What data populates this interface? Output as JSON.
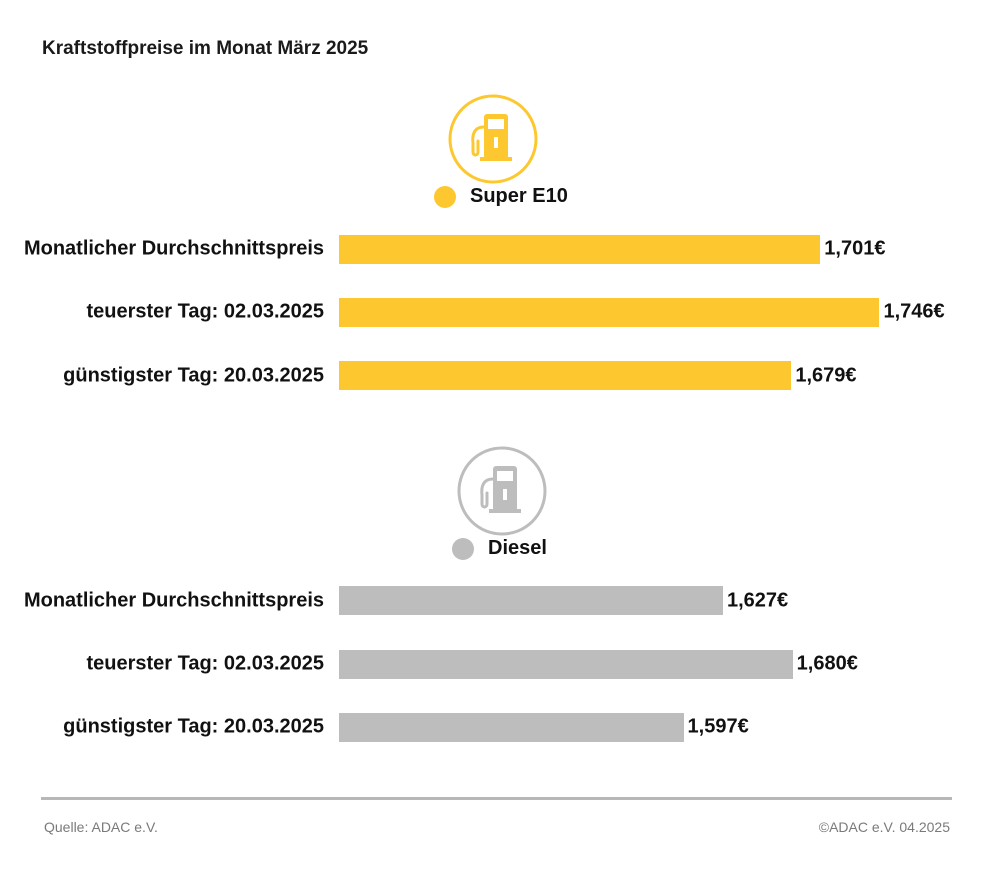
{
  "title": "Kraftstoffpreise im Monat März 2025",
  "chart_data": [
    {
      "type": "bar",
      "orientation": "horizontal",
      "series_name": "Super E10",
      "color": "#fdc82f",
      "icon": "fuel-pump-icon",
      "categories": [
        "Monatlicher Durchschnittspreis",
        "teuerster Tag: 02.03.2025",
        "günstigster Tag: 20.03.2025"
      ],
      "values": [
        1.701,
        1.746,
        1.679
      ],
      "value_labels": [
        "1,701€",
        "1,746€",
        "1,679€"
      ]
    },
    {
      "type": "bar",
      "orientation": "horizontal",
      "series_name": "Diesel",
      "color": "#bdbdbd",
      "icon": "fuel-pump-icon",
      "categories": [
        "Monatlicher Durchschnittspreis",
        "teuerster Tag: 02.03.2025",
        "günstigster Tag: 20.03.2025"
      ],
      "values": [
        1.627,
        1.68,
        1.597
      ],
      "value_labels": [
        "1,627€",
        "1,680€",
        "1,597€"
      ]
    }
  ],
  "footer": {
    "source": "Quelle: ADAC e.V.",
    "copyright": "©ADAC e.V. 04.2025"
  }
}
